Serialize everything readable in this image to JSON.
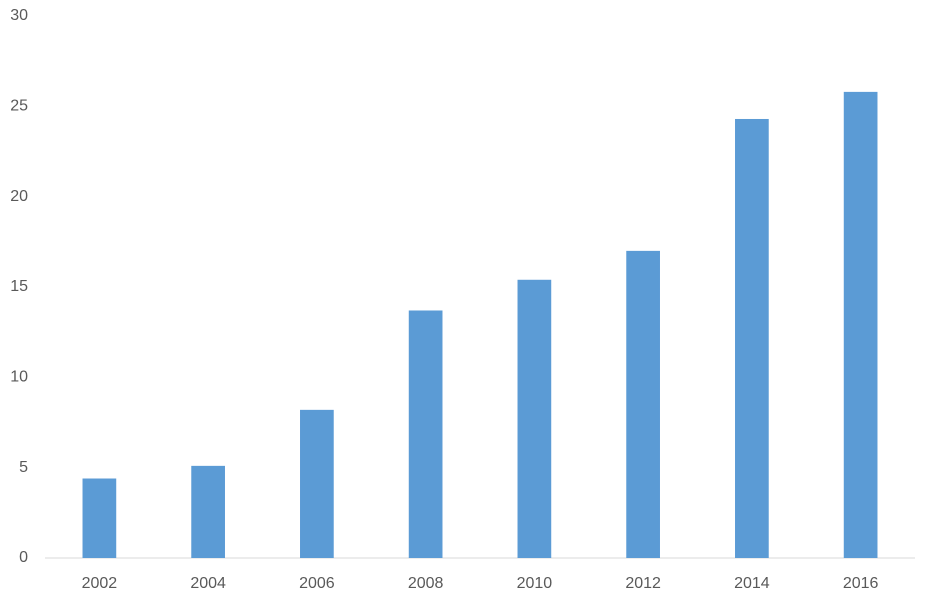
{
  "chart_data": {
    "type": "bar",
    "categories": [
      "2002",
      "2004",
      "2006",
      "2008",
      "2010",
      "2012",
      "2014",
      "2016"
    ],
    "values": [
      4.4,
      5.1,
      8.2,
      13.7,
      15.4,
      17.0,
      24.3,
      25.8
    ],
    "color": "#5b9bd5",
    "ylim": [
      0,
      30
    ],
    "yticks": [
      0,
      5,
      10,
      15,
      20,
      25,
      30
    ],
    "grid": false
  }
}
